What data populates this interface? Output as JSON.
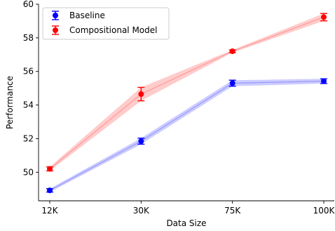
{
  "chart_data": {
    "type": "line",
    "xlabel": "Data Size",
    "ylabel": "Performance",
    "categories": [
      "12K",
      "30K",
      "75K",
      "100K"
    ],
    "ylim": [
      48.3,
      60
    ],
    "yticks": [
      "50",
      "52",
      "54",
      "56",
      "58",
      "60"
    ],
    "grid": false,
    "legend_position": "top-left",
    "series": [
      {
        "name": "Baseline",
        "color": "#0000ff",
        "band_color": "#9999ff",
        "values": [
          48.92,
          51.85,
          55.3,
          55.42
        ],
        "errors": [
          0.1,
          0.18,
          0.18,
          0.14
        ]
      },
      {
        "name": "Compositional Model",
        "color": "#ff0000",
        "band_color": "#ff9999",
        "values": [
          50.2,
          54.65,
          57.2,
          59.23
        ],
        "errors": [
          0.12,
          0.4,
          0.08,
          0.22
        ]
      }
    ]
  }
}
